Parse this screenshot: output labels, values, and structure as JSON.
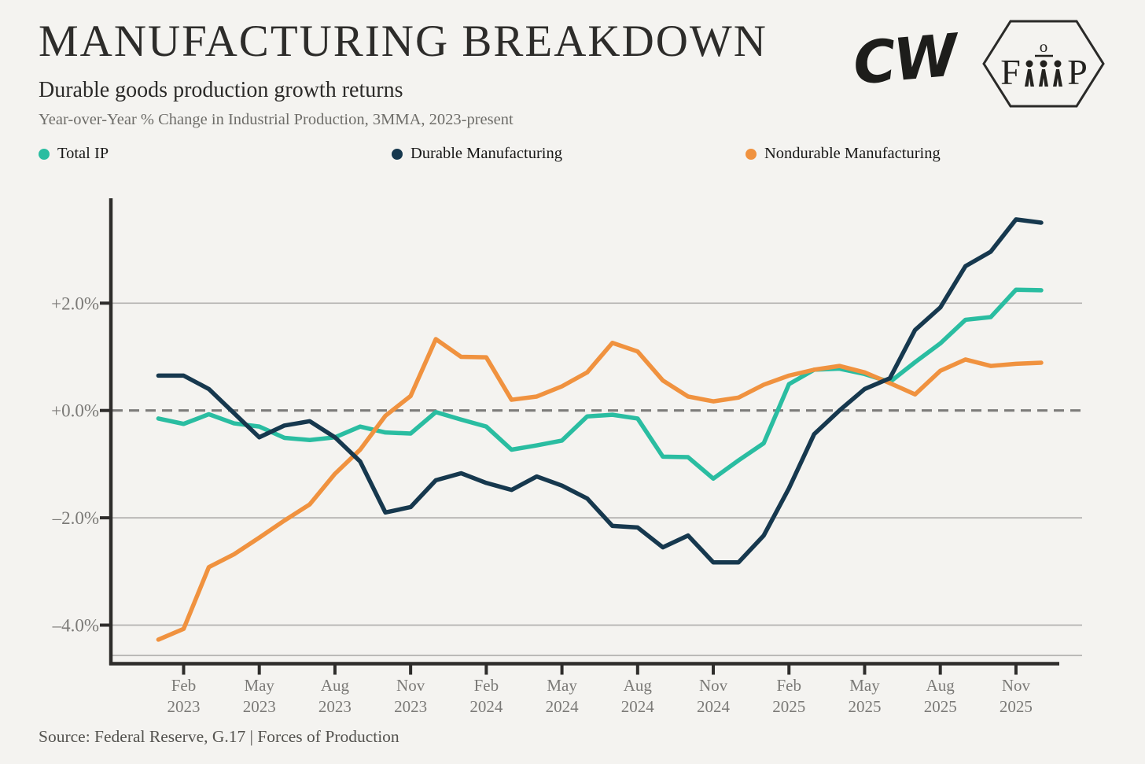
{
  "header": {
    "title": "MANUFACTURING BREAKDOWN",
    "subtitle": "Durable goods production growth returns",
    "caption": "Year-over-Year % Change in Industrial Production, 3MMA, 2023-present"
  },
  "logos": {
    "cw_text": "CW",
    "badge_left": "F",
    "badge_top": "o",
    "badge_right": "P"
  },
  "legend": [
    {
      "label": "Total IP",
      "color": "#2abda1"
    },
    {
      "label": "Durable Manufacturing",
      "color": "#16384e"
    },
    {
      "label": "Nondurable Manufacturing",
      "color": "#f0923f"
    }
  ],
  "source": "Source: Federal Reserve, G.17 | Forces of Production",
  "colors": {
    "background": "#f4f3f0",
    "grid": "#b3b2b0",
    "zero_line": "#7e7d7b",
    "axis": "#2e2d2b",
    "tick_text": "#7b7a77"
  },
  "chart_data": {
    "type": "line",
    "x": [
      "Jan 2023",
      "Feb 2023",
      "Mar 2023",
      "Apr 2023",
      "May 2023",
      "Jun 2023",
      "Jul 2023",
      "Aug 2023",
      "Sep 2023",
      "Oct 2023",
      "Nov 2023",
      "Dec 2023",
      "Jan 2024",
      "Feb 2024",
      "Mar 2024",
      "Apr 2024",
      "May 2024",
      "Jun 2024",
      "Jul 2024",
      "Aug 2024",
      "Sep 2024",
      "Oct 2024",
      "Nov 2024",
      "Dec 2024",
      "Jan 2025",
      "Feb 2025",
      "Mar 2025",
      "Apr 2025",
      "May 2025",
      "Jun 2025",
      "Jul 2025",
      "Aug 2025",
      "Sep 2025",
      "Oct 2025",
      "Nov 2025",
      "Dec 2025"
    ],
    "series": [
      {
        "name": "Total IP",
        "color": "#2abda1",
        "values": [
          -0.15,
          -0.25,
          -0.07,
          -0.24,
          -0.3,
          -0.51,
          -0.55,
          -0.5,
          -0.3,
          -0.41,
          -0.43,
          -0.03,
          -0.17,
          -0.3,
          -0.73,
          -0.65,
          -0.56,
          -0.11,
          -0.08,
          -0.15,
          -0.86,
          -0.87,
          -1.27,
          -0.93,
          -0.61,
          0.49,
          0.76,
          0.78,
          0.68,
          0.53,
          0.9,
          1.25,
          1.69,
          1.74,
          2.25,
          2.24
        ]
      },
      {
        "name": "Durable Manufacturing",
        "color": "#16384e",
        "values": [
          0.65,
          0.65,
          0.4,
          -0.05,
          -0.5,
          -0.28,
          -0.2,
          -0.5,
          -0.95,
          -1.9,
          -1.8,
          -1.3,
          -1.17,
          -1.35,
          -1.48,
          -1.23,
          -1.4,
          -1.64,
          -2.15,
          -2.18,
          -2.55,
          -2.33,
          -2.83,
          -2.83,
          -2.33,
          -1.45,
          -0.44,
          0.0,
          0.4,
          0.6,
          1.5,
          1.92,
          2.69,
          2.96,
          3.56,
          3.5
        ]
      },
      {
        "name": "Nondurable Manufacturing",
        "color": "#f0923f",
        "values": [
          -4.27,
          -4.07,
          -2.92,
          -2.68,
          -2.37,
          -2.05,
          -1.75,
          -1.18,
          -0.73,
          -0.1,
          0.27,
          1.33,
          1.0,
          0.99,
          0.2,
          0.26,
          0.45,
          0.71,
          1.26,
          1.1,
          0.56,
          0.26,
          0.17,
          0.24,
          0.48,
          0.65,
          0.76,
          0.83,
          0.71,
          0.51,
          0.3,
          0.74,
          0.95,
          0.83,
          0.87,
          0.89
        ]
      }
    ],
    "y_ticks": [
      {
        "value": 2.0,
        "label": "+2.0%"
      },
      {
        "value": 0.0,
        "label": "+0.0%"
      },
      {
        "value": -2.0,
        "label": "–2.0%"
      },
      {
        "value": -4.0,
        "label": "–4.0%"
      }
    ],
    "x_ticks": [
      {
        "index": 1,
        "line1": "Feb",
        "line2": "2023"
      },
      {
        "index": 4,
        "line1": "May",
        "line2": "2023"
      },
      {
        "index": 7,
        "line1": "Aug",
        "line2": "2023"
      },
      {
        "index": 10,
        "line1": "Nov",
        "line2": "2023"
      },
      {
        "index": 13,
        "line1": "Feb",
        "line2": "2024"
      },
      {
        "index": 16,
        "line1": "May",
        "line2": "2024"
      },
      {
        "index": 19,
        "line1": "Aug",
        "line2": "2024"
      },
      {
        "index": 22,
        "line1": "Nov",
        "line2": "2024"
      },
      {
        "index": 25,
        "line1": "Feb",
        "line2": "2025"
      },
      {
        "index": 28,
        "line1": "May",
        "line2": "2025"
      },
      {
        "index": 31,
        "line1": "Aug",
        "line2": "2025"
      },
      {
        "index": 34,
        "line1": "Nov",
        "line2": "2025"
      }
    ],
    "ylim": [
      -4.6,
      3.8
    ],
    "grid": true,
    "zero_line_dashed": true,
    "legend_position": "top"
  }
}
